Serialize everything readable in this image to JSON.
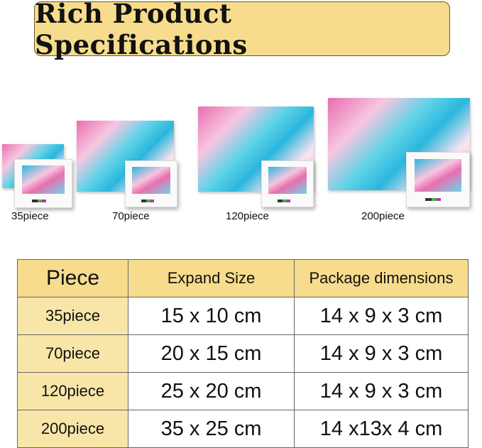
{
  "title": "Rich Product Specifications",
  "products": [
    {
      "label": "35piece"
    },
    {
      "label": "70piece"
    },
    {
      "label": "120piece"
    },
    {
      "label": "200piece"
    }
  ],
  "table": {
    "headers": [
      "Piece",
      "Expand Size",
      "Package dimensions"
    ],
    "rows": [
      [
        "35piece",
        "15 x 10 cm",
        "14 x 9 x 3 cm"
      ],
      [
        "70piece",
        "20 x 15 cm",
        "14 x 9 x 3 cm"
      ],
      [
        "120piece",
        "25 x 20 cm",
        "14 x 9 x 3 cm"
      ],
      [
        "200piece",
        "35 x 25 cm",
        "14 x13x 4 cm"
      ]
    ]
  },
  "colors": {
    "header_bg": "#f6dc8c",
    "first_col_bg": "#f8e6a8"
  }
}
